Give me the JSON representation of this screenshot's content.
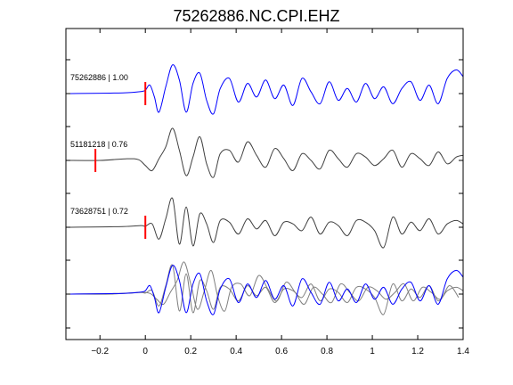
{
  "chart_data": {
    "type": "line",
    "title": "75262886.NC.CPI.EHZ",
    "xlabel": "",
    "ylabel": "",
    "xlim": [
      -0.35,
      1.4
    ],
    "xticks": [
      -0.2,
      0,
      0.2,
      0.4,
      0.6,
      0.8,
      1,
      1.2,
      1.4
    ],
    "xtick_labels": [
      "−0.2",
      "0",
      "0.2",
      "0.4",
      "0.6",
      "0.8",
      "1",
      "1.2",
      "1.4"
    ],
    "grid": false,
    "legend": "none",
    "colors": {
      "reference": "#0000ff",
      "other": "#404040",
      "overlay_other": "#808080",
      "pick": "#ff0000"
    },
    "series": [
      {
        "label": "75262886 | 1.00",
        "color": "#0000ff",
        "offset": 3,
        "pick_time": 0.0,
        "onset": 0.0,
        "x": [
          -0.35,
          -0.1,
          -0.02,
          0.0,
          0.02,
          0.04,
          0.06,
          0.09,
          0.12,
          0.15,
          0.18,
          0.21,
          0.24,
          0.27,
          0.3,
          0.33,
          0.37,
          0.41,
          0.45,
          0.49,
          0.53,
          0.57,
          0.61,
          0.65,
          0.69,
          0.73,
          0.77,
          0.81,
          0.85,
          0.89,
          0.93,
          0.97,
          1.01,
          1.05,
          1.09,
          1.13,
          1.17,
          1.21,
          1.25,
          1.29,
          1.33,
          1.37,
          1.4
        ],
        "y": [
          0.0,
          0.02,
          0.06,
          0.1,
          0.25,
          -0.1,
          -0.55,
          0.2,
          0.85,
          0.4,
          -0.55,
          0.3,
          0.6,
          -0.2,
          -0.6,
          0.15,
          0.45,
          -0.25,
          0.3,
          -0.1,
          0.4,
          -0.15,
          0.25,
          -0.35,
          0.45,
          0.05,
          -0.3,
          0.35,
          -0.2,
          0.15,
          -0.25,
          0.3,
          -0.15,
          0.2,
          -0.3,
          0.15,
          0.35,
          -0.2,
          0.25,
          -0.3,
          0.45,
          0.7,
          0.5
        ]
      },
      {
        "label": "51181218 | 0.76",
        "color": "#404040",
        "offset": 2,
        "pick_time": -0.22,
        "onset": -0.05,
        "x": [
          -0.35,
          -0.2,
          -0.08,
          -0.03,
          0.0,
          0.03,
          0.06,
          0.09,
          0.12,
          0.15,
          0.18,
          0.21,
          0.24,
          0.27,
          0.3,
          0.33,
          0.37,
          0.41,
          0.45,
          0.49,
          0.53,
          0.57,
          0.61,
          0.65,
          0.69,
          0.73,
          0.77,
          0.81,
          0.85,
          0.89,
          0.93,
          0.97,
          1.01,
          1.05,
          1.09,
          1.13,
          1.17,
          1.21,
          1.25,
          1.29,
          1.33,
          1.37,
          1.4
        ],
        "y": [
          0.0,
          0.0,
          0.05,
          0.02,
          -0.15,
          -0.3,
          0.05,
          0.4,
          0.95,
          0.3,
          -0.45,
          0.1,
          0.7,
          -0.1,
          -0.5,
          0.2,
          0.3,
          -0.05,
          0.55,
          0.15,
          -0.2,
          0.35,
          0.05,
          -0.3,
          0.2,
          0.0,
          -0.25,
          0.3,
          0.05,
          -0.2,
          0.2,
          0.1,
          -0.15,
          0.05,
          0.3,
          -0.2,
          0.2,
          0.05,
          -0.15,
          0.25,
          -0.1,
          0.1,
          0.15
        ]
      },
      {
        "label": "73628751 | 0.72",
        "color": "#404040",
        "offset": 1,
        "pick_time": 0.0,
        "onset": 0.0,
        "x": [
          -0.35,
          -0.1,
          -0.02,
          0.0,
          0.03,
          0.06,
          0.09,
          0.12,
          0.15,
          0.18,
          0.21,
          0.24,
          0.27,
          0.3,
          0.33,
          0.37,
          0.41,
          0.45,
          0.49,
          0.53,
          0.57,
          0.61,
          0.65,
          0.69,
          0.73,
          0.77,
          0.81,
          0.85,
          0.89,
          0.93,
          0.97,
          1.01,
          1.05,
          1.09,
          1.13,
          1.17,
          1.21,
          1.25,
          1.29,
          1.33,
          1.37,
          1.4
        ],
        "y": [
          0.0,
          0.02,
          0.05,
          0.03,
          0.1,
          -0.35,
          0.25,
          0.85,
          -0.5,
          0.6,
          -0.55,
          0.4,
          0.1,
          -0.45,
          0.2,
          0.15,
          -0.2,
          0.25,
          -0.05,
          0.2,
          -0.25,
          0.15,
          0.1,
          -0.1,
          0.3,
          -0.2,
          0.15,
          0.05,
          -0.25,
          0.2,
          0.15,
          -0.1,
          -0.6,
          0.3,
          -0.2,
          0.15,
          -0.1,
          0.25,
          -0.2,
          0.1,
          0.2,
          0.1
        ]
      }
    ],
    "overlay": {
      "offset": 0,
      "description_series": "overlay of all traces"
    }
  }
}
